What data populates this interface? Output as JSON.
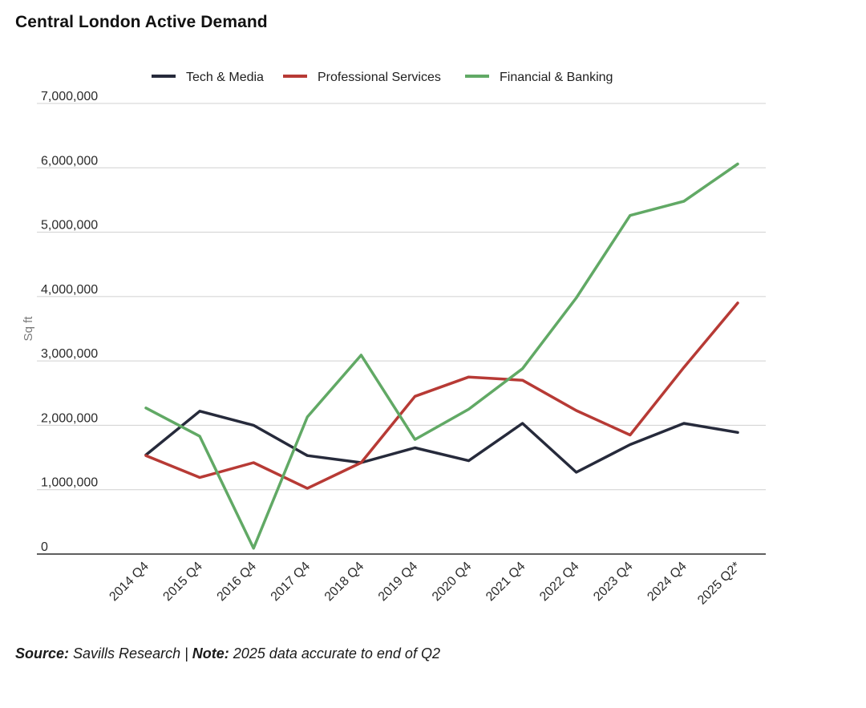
{
  "title": "Central London Active Demand",
  "chart_data": {
    "type": "line",
    "title": "Central London Active Demand",
    "xlabel": "",
    "ylabel": "Sq ft",
    "ylim": [
      0,
      7000000
    ],
    "yticks": [
      0,
      1000000,
      2000000,
      3000000,
      4000000,
      5000000,
      6000000,
      7000000
    ],
    "ytick_labels": [
      "0",
      "1,000,000",
      "2,000,000",
      "3,000,000",
      "4,000,000",
      "5,000,000",
      "6,000,000",
      "7,000,000"
    ],
    "grid": true,
    "legend_position": "top",
    "categories": [
      "2014 Q4",
      "2015 Q4",
      "2016 Q4",
      "2017 Q4",
      "2018 Q4",
      "2019 Q4",
      "2020 Q4",
      "2021 Q4",
      "2022 Q4",
      "2023 Q4",
      "2024 Q4",
      "2025 Q2*"
    ],
    "series": [
      {
        "name": "Tech & Media",
        "color": "#262a3b",
        "values": [
          1540000,
          2220000,
          2000000,
          1530000,
          1420000,
          1650000,
          1450000,
          2030000,
          1270000,
          1700000,
          2030000,
          1890000
        ]
      },
      {
        "name": "Professional Services",
        "color": "#b73a35",
        "values": [
          1530000,
          1190000,
          1420000,
          1020000,
          1420000,
          2450000,
          2750000,
          2700000,
          2230000,
          1850000,
          2900000,
          3900000
        ]
      },
      {
        "name": "Financial & Banking",
        "color": "#61a965",
        "values": [
          2270000,
          1830000,
          90000,
          2130000,
          3090000,
          1780000,
          2250000,
          2880000,
          3980000,
          5260000,
          5480000,
          6060000
        ]
      }
    ]
  },
  "footer": {
    "source_label": "Source:",
    "source_text": " Savills Research | ",
    "note_label": "Note:",
    "note_text": " 2025 data accurate to end of Q2"
  }
}
